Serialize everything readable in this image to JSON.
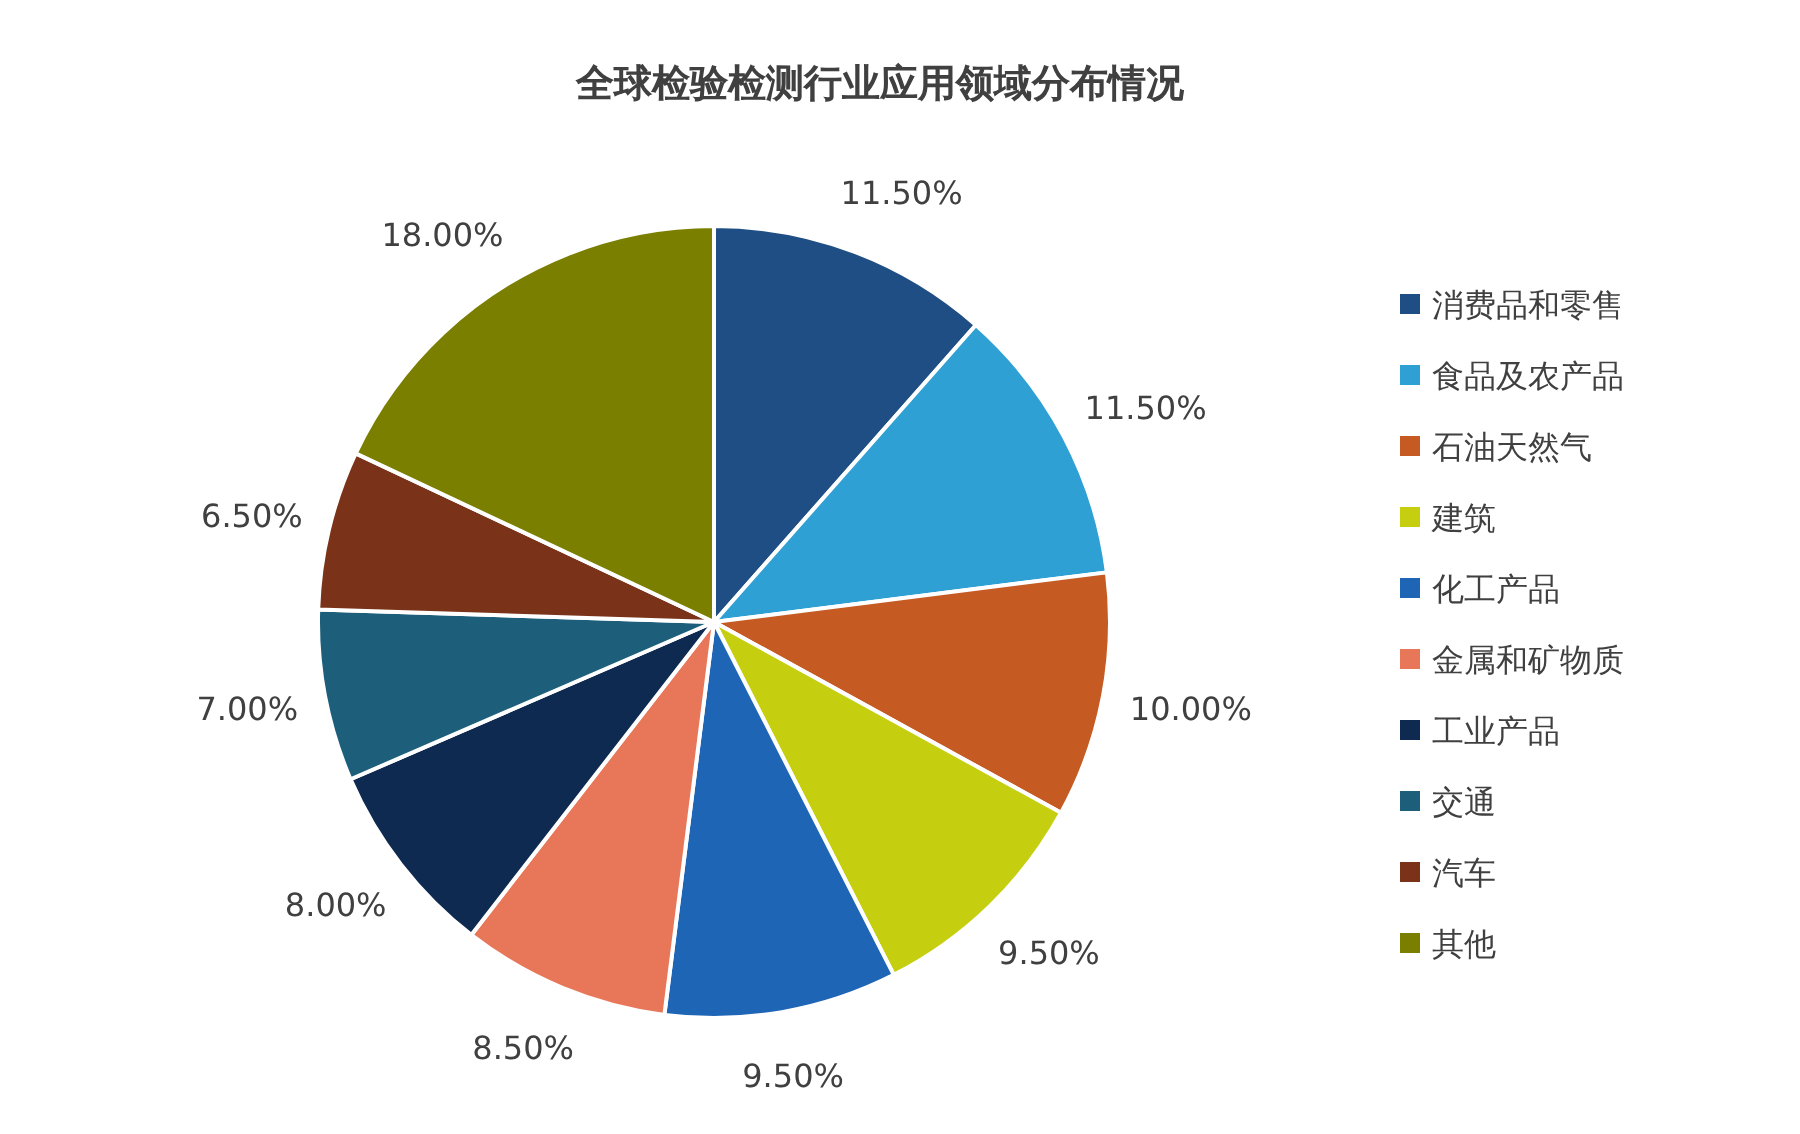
{
  "chart_data": {
    "type": "pie",
    "title": "全球检验检测行业应用领域分布情况",
    "categories": [
      "消费品和零售",
      "食品及农产品",
      "石油天然气",
      "建筑",
      "化工产品",
      "金属和矿物质",
      "工业产品",
      "交通",
      "汽车",
      "其他"
    ],
    "values": [
      11.5,
      11.5,
      10,
      9.5,
      9.5,
      8.5,
      8,
      7,
      6.5,
      18
    ],
    "colors": [
      "#1f4e85",
      "#2fa0d4",
      "#c55a22",
      "#c5cf10",
      "#1f65b5",
      "#e8775a",
      "#0f2a50",
      "#1d5f7a",
      "#7a3318",
      "#7a7f00"
    ],
    "value_labels": [
      "11.50%",
      "11.50%",
      "10.00%",
      "9.50%",
      "9.50%",
      "8.50%",
      "8.00%",
      "7.00%",
      "6.50%",
      "18.00%"
    ],
    "legend": "right"
  }
}
